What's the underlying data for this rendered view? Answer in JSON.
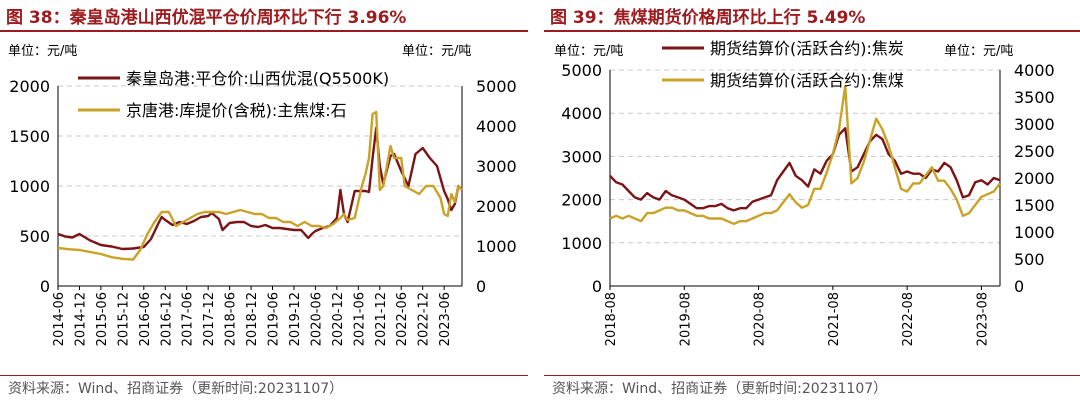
{
  "left": {
    "title": "图 38：秦皇岛港山西优混平仓价周环比下行 3.96%",
    "unit_left": "单位：元/吨",
    "unit_right": "单位：元/吨",
    "source": "资料来源：Wind、招商证券（更新时间:20231107）",
    "colors": {
      "series1": "#7b1416",
      "series2": "#c9a227",
      "grid": "#c8c8c8",
      "title": "#9c1b1f"
    }
  },
  "right": {
    "title": "图 39：焦煤期货价格周环比上行 5.49%",
    "unit_left": "单位：元/吨",
    "unit_right": "单位：元/吨",
    "source": "资料来源：Wind、招商证券（更新时间:20231107）",
    "colors": {
      "series1": "#7b1416",
      "series2": "#c9a227",
      "grid": "#c8c8c8",
      "title": "#9c1b1f"
    }
  },
  "chart_data": [
    {
      "type": "line",
      "title": "图 38：秦皇岛港山西优混平仓价周环比下行 3.96%",
      "x_tick_labels": [
        "2014-06",
        "2014-12",
        "2015-06",
        "2015-12",
        "2016-06",
        "2016-12",
        "2017-06",
        "2017-12",
        "2018-06",
        "2018-12",
        "2019-06",
        "2019-12",
        "2020-06",
        "2020-12",
        "2021-06",
        "2021-12",
        "2022-06",
        "2022-12",
        "2023-06"
      ],
      "y_left": {
        "lim": [
          0,
          2000
        ],
        "ticks": [
          0,
          500,
          1000,
          1500,
          2000
        ]
      },
      "y_right": {
        "lim": [
          0,
          5000
        ],
        "ticks": [
          0,
          1000,
          2000,
          3000,
          4000,
          5000
        ]
      },
      "x_range": [
        "2014-06",
        "2023-11"
      ],
      "legend_position": "top-left",
      "grid": "horizontal dashed",
      "series": [
        {
          "name": "秦皇岛港:平仓价:山西优混(Q5500K)",
          "axis": "left",
          "x": [
            "2014-06",
            "2014-08",
            "2014-10",
            "2014-12",
            "2015-03",
            "2015-06",
            "2015-09",
            "2015-12",
            "2016-03",
            "2016-06",
            "2016-08",
            "2016-10",
            "2016-11",
            "2016-12",
            "2017-02",
            "2017-04",
            "2017-06",
            "2017-08",
            "2017-10",
            "2017-12",
            "2018-01",
            "2018-03",
            "2018-04",
            "2018-06",
            "2018-08",
            "2018-10",
            "2018-12",
            "2019-02",
            "2019-04",
            "2019-06",
            "2019-08",
            "2019-10",
            "2019-12",
            "2020-02",
            "2020-04",
            "2020-05",
            "2020-06",
            "2020-08",
            "2020-10",
            "2020-12",
            "2021-01",
            "2021-02",
            "2021-03",
            "2021-05",
            "2021-06",
            "2021-08",
            "2021-09",
            "2021-10",
            "2021-11",
            "2021-12",
            "2022-01",
            "2022-03",
            "2022-04",
            "2022-06",
            "2022-08",
            "2022-10",
            "2022-12",
            "2023-02",
            "2023-04",
            "2023-06",
            "2023-07",
            "2023-08",
            "2023-09",
            "2023-10",
            "2023-11"
          ],
          "values": [
            520,
            495,
            485,
            520,
            455,
            410,
            395,
            370,
            375,
            390,
            470,
            620,
            690,
            660,
            610,
            640,
            620,
            650,
            690,
            700,
            730,
            670,
            560,
            630,
            640,
            640,
            600,
            590,
            610,
            580,
            580,
            570,
            560,
            560,
            480,
            520,
            550,
            580,
            600,
            680,
            960,
            720,
            640,
            950,
            950,
            950,
            940,
            1280,
            1580,
            1200,
            1020,
            1300,
            1320,
            1150,
            1000,
            1320,
            1380,
            1280,
            1200,
            950,
            870,
            760,
            820,
            1000,
            960
          ]
        },
        {
          "name": "京唐港:库提价(含税):主焦煤:石",
          "axis": "right",
          "x": [
            "2014-06",
            "2014-09",
            "2014-12",
            "2015-03",
            "2015-06",
            "2015-09",
            "2015-12",
            "2016-03",
            "2016-05",
            "2016-07",
            "2016-09",
            "2016-11",
            "2017-01",
            "2017-03",
            "2017-05",
            "2017-07",
            "2017-09",
            "2017-11",
            "2018-01",
            "2018-03",
            "2018-05",
            "2018-07",
            "2018-09",
            "2018-11",
            "2019-01",
            "2019-03",
            "2019-05",
            "2019-07",
            "2019-09",
            "2019-11",
            "2020-01",
            "2020-03",
            "2020-05",
            "2020-07",
            "2020-09",
            "2020-11",
            "2021-01",
            "2021-02",
            "2021-03",
            "2021-05",
            "2021-07",
            "2021-08",
            "2021-09",
            "2021-10",
            "2021-11",
            "2021-12",
            "2022-01",
            "2022-02",
            "2022-03",
            "2022-04",
            "2022-06",
            "2022-07",
            "2022-09",
            "2022-11",
            "2023-01",
            "2023-03",
            "2023-05",
            "2023-06",
            "2023-07",
            "2023-08",
            "2023-09",
            "2023-10",
            "2023-11"
          ],
          "values": [
            950,
            920,
            900,
            850,
            800,
            720,
            680,
            660,
            900,
            1300,
            1600,
            1850,
            1850,
            1500,
            1600,
            1700,
            1800,
            1850,
            1850,
            1850,
            1800,
            1850,
            1900,
            1850,
            1800,
            1800,
            1700,
            1700,
            1600,
            1600,
            1500,
            1600,
            1500,
            1500,
            1450,
            1550,
            1700,
            1800,
            1650,
            1700,
            2500,
            2800,
            3200,
            4300,
            4350,
            2400,
            2500,
            3000,
            3500,
            3200,
            3200,
            2500,
            2400,
            2300,
            2500,
            2500,
            2200,
            1800,
            1750,
            2300,
            2100,
            2500,
            2400
          ]
        }
      ]
    },
    {
      "type": "line",
      "title": "图 39：焦煤期货价格周环比上行 5.49%",
      "x_tick_labels": [
        "2018-08",
        "2019-08",
        "2020-08",
        "2021-08",
        "2022-08",
        "2023-08"
      ],
      "y_left": {
        "lim": [
          0,
          5000
        ],
        "ticks": [
          0,
          1000,
          2000,
          3000,
          4000,
          5000
        ]
      },
      "y_right": {
        "lim": [
          0,
          4000
        ],
        "ticks": [
          0,
          500,
          1000,
          1500,
          2000,
          2500,
          3000,
          3500,
          4000
        ]
      },
      "x_range": [
        "2018-08",
        "2023-11"
      ],
      "legend_position": "top-right",
      "grid": "horizontal dashed",
      "series": [
        {
          "name": "期货结算价(活跃合约):焦炭",
          "axis": "left",
          "x": [
            "2018-08",
            "2018-09",
            "2018-10",
            "2018-11",
            "2018-12",
            "2019-01",
            "2019-02",
            "2019-03",
            "2019-04",
            "2019-05",
            "2019-06",
            "2019-07",
            "2019-08",
            "2019-09",
            "2019-10",
            "2019-11",
            "2019-12",
            "2020-01",
            "2020-02",
            "2020-03",
            "2020-04",
            "2020-05",
            "2020-06",
            "2020-07",
            "2020-08",
            "2020-09",
            "2020-10",
            "2020-11",
            "2020-12",
            "2021-01",
            "2021-02",
            "2021-03",
            "2021-04",
            "2021-05",
            "2021-06",
            "2021-07",
            "2021-08",
            "2021-09",
            "2021-10",
            "2021-11",
            "2021-12",
            "2022-01",
            "2022-02",
            "2022-03",
            "2022-04",
            "2022-05",
            "2022-06",
            "2022-07",
            "2022-08",
            "2022-09",
            "2022-10",
            "2022-11",
            "2022-12",
            "2023-01",
            "2023-02",
            "2023-03",
            "2023-04",
            "2023-05",
            "2023-06",
            "2023-07",
            "2023-08",
            "2023-09",
            "2023-10",
            "2023-11"
          ],
          "values": [
            2550,
            2400,
            2350,
            2200,
            2050,
            2000,
            2150,
            2050,
            2000,
            2200,
            2100,
            2050,
            2000,
            1900,
            1800,
            1800,
            1850,
            1850,
            1900,
            1800,
            1750,
            1800,
            1800,
            1950,
            2000,
            2050,
            2100,
            2450,
            2650,
            2850,
            2550,
            2450,
            2300,
            2700,
            2600,
            2900,
            3050,
            3500,
            3650,
            2650,
            2750,
            3050,
            3350,
            3500,
            3400,
            3050,
            2900,
            2600,
            2650,
            2600,
            2600,
            2500,
            2700,
            2650,
            2850,
            2750,
            2450,
            2050,
            2100,
            2400,
            2450,
            2350,
            2500,
            2450
          ]
        },
        {
          "name": "期货结算价(活跃合约):焦煤",
          "axis": "right",
          "x": [
            "2018-08",
            "2018-09",
            "2018-10",
            "2018-11",
            "2018-12",
            "2019-01",
            "2019-02",
            "2019-03",
            "2019-04",
            "2019-05",
            "2019-06",
            "2019-07",
            "2019-08",
            "2019-09",
            "2019-10",
            "2019-11",
            "2019-12",
            "2020-01",
            "2020-02",
            "2020-03",
            "2020-04",
            "2020-05",
            "2020-06",
            "2020-07",
            "2020-08",
            "2020-09",
            "2020-10",
            "2020-11",
            "2020-12",
            "2021-01",
            "2021-02",
            "2021-03",
            "2021-04",
            "2021-05",
            "2021-06",
            "2021-07",
            "2021-08",
            "2021-09",
            "2021-10",
            "2021-11",
            "2021-12",
            "2022-01",
            "2022-02",
            "2022-03",
            "2022-04",
            "2022-05",
            "2022-06",
            "2022-07",
            "2022-08",
            "2022-09",
            "2022-10",
            "2022-11",
            "2022-12",
            "2023-01",
            "2023-02",
            "2023-03",
            "2023-04",
            "2023-05",
            "2023-06",
            "2023-07",
            "2023-08",
            "2023-09",
            "2023-10",
            "2023-11"
          ],
          "values": [
            1250,
            1300,
            1250,
            1300,
            1250,
            1200,
            1350,
            1350,
            1400,
            1450,
            1450,
            1400,
            1400,
            1350,
            1300,
            1300,
            1250,
            1250,
            1250,
            1200,
            1150,
            1200,
            1200,
            1250,
            1300,
            1350,
            1350,
            1400,
            1550,
            1700,
            1550,
            1450,
            1500,
            1800,
            1800,
            2100,
            2450,
            2900,
            3700,
            1900,
            2000,
            2300,
            2700,
            3100,
            2900,
            2600,
            2200,
            1800,
            1750,
            1900,
            1900,
            2050,
            2200,
            1950,
            1950,
            1800,
            1600,
            1300,
            1350,
            1500,
            1650,
            1700,
            1750,
            1900
          ]
        }
      ]
    }
  ]
}
